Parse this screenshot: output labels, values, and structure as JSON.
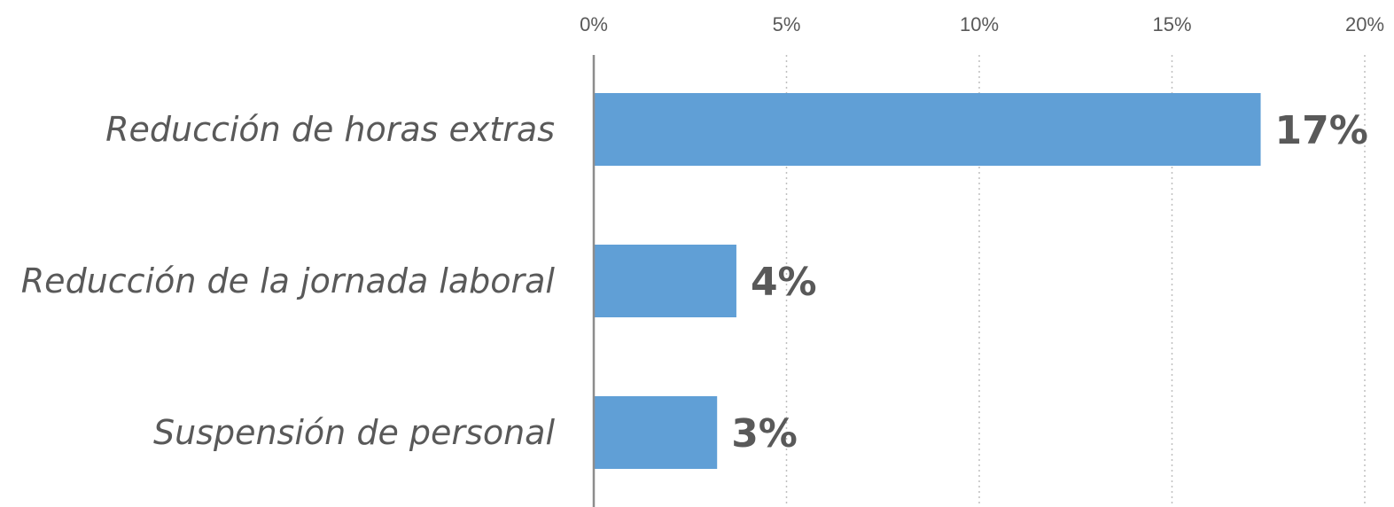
{
  "chart_data": {
    "type": "bar",
    "orientation": "horizontal",
    "categories": [
      "Reducción de horas extras",
      "Reducción de la jornada laboral",
      "Suspensión de personal"
    ],
    "values": [
      17.3,
      3.7,
      3.2
    ],
    "data_labels": [
      "17%",
      "4%",
      "3%"
    ],
    "xlim": [
      0,
      20
    ],
    "x_ticks": [
      0,
      5,
      10,
      15,
      20
    ],
    "x_tick_labels": [
      "0%",
      "5%",
      "10%",
      "15%",
      "20%"
    ],
    "title": "",
    "xlabel": "",
    "ylabel": "",
    "x_axis_position": "top",
    "grid": true,
    "legend": "none",
    "bar_color": "#609fd6",
    "text_color": "#595959"
  }
}
